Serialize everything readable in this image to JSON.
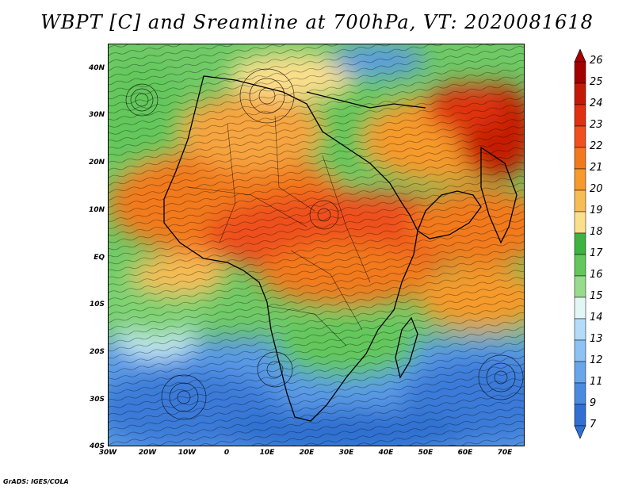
{
  "title": "WBPT [C] and Sreamline at 700hPa, VT: 2020081618",
  "credit": "GrADS: IGES/COLA",
  "map": {
    "lon_range": [
      -30,
      75
    ],
    "lat_range": [
      -40,
      45
    ],
    "lat_labels": [
      "40N",
      "30N",
      "20N",
      "10N",
      "EQ",
      "10S",
      "20S",
      "30S",
      "40S"
    ],
    "lat_values": [
      40,
      30,
      20,
      10,
      0,
      -10,
      -20,
      -30,
      -40
    ],
    "lon_labels": [
      "30W",
      "20W",
      "10W",
      "0",
      "10E",
      "20E",
      "30E",
      "40E",
      "50E",
      "60E",
      "70E"
    ],
    "lon_values": [
      -30,
      -20,
      -10,
      0,
      10,
      20,
      30,
      40,
      50,
      60,
      70
    ]
  },
  "colorbar": {
    "labels": [
      "26",
      "25",
      "24",
      "23",
      "22",
      "21",
      "20",
      "19",
      "18",
      "17",
      "16",
      "15",
      "14",
      "13",
      "12",
      "11",
      "9",
      "7"
    ],
    "colors": [
      "#a50000",
      "#c41a05",
      "#e0300f",
      "#ef501c",
      "#f27a1e",
      "#f69a2b",
      "#f8bc55",
      "#fbdf8c",
      "#3eb340",
      "#64c75c",
      "#96dc8c",
      "#e2f6f6",
      "#b4dcf8",
      "#8cc2f4",
      "#68a6ec",
      "#4a8ae0",
      "#3070d4"
    ],
    "top_arrow_color": "#a50000",
    "bottom_arrow_color": "#3070d4"
  },
  "colors": {
    "ocean_cool": "#5a9ae6",
    "ocean_cold": "#3a7ad8",
    "land_green": "#64c75c",
    "warm_orange": "#f27a1e",
    "hot_red": "#c41a05"
  }
}
